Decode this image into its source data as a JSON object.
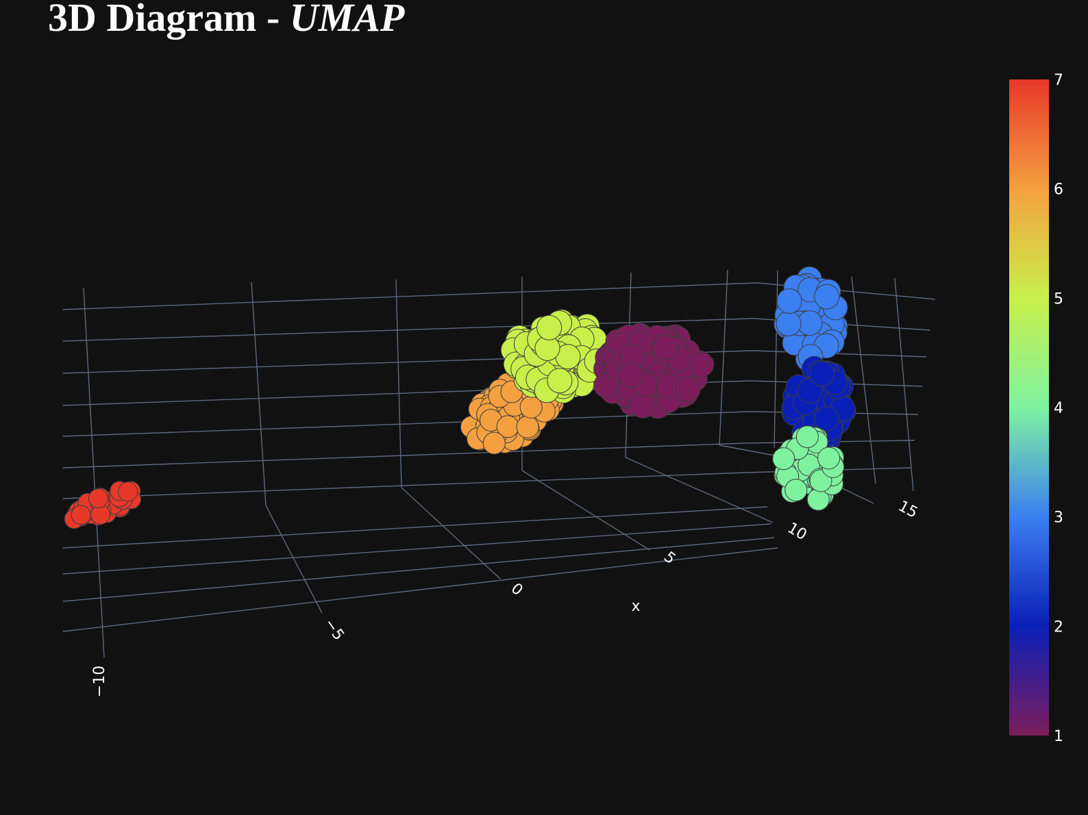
{
  "title": {
    "main": "3D Diagram - ",
    "emphasis": "UMAP"
  },
  "chart_data": {
    "type": "scatter",
    "dimensions": 3,
    "title": "3D Diagram - UMAP",
    "xlabel": "x",
    "x_ticks": [
      "−10",
      "−5",
      "0",
      "5",
      "10",
      "15"
    ],
    "colorbar": {
      "min": 1,
      "max": 7,
      "ticks": [
        "1",
        "2",
        "3",
        "4",
        "5",
        "6",
        "7"
      ],
      "colorscale": [
        "#7d1e5c",
        "#0a1fb8",
        "#3b7ff0",
        "#7ff2a0",
        "#c8f04a",
        "#f5a040",
        "#e8382a"
      ]
    },
    "clusters": [
      {
        "label": "1",
        "x_range": [
          6,
          9
        ],
        "color": "#7d1e5c"
      },
      {
        "label": "2",
        "x_range": [
          12,
          14
        ],
        "color": "#0a1fb8"
      },
      {
        "label": "3",
        "x_range": [
          12,
          14
        ],
        "color": "#3b7ff0"
      },
      {
        "label": "4",
        "x_range": [
          11,
          13
        ],
        "color": "#7ff2a0"
      },
      {
        "label": "5",
        "x_range": [
          3,
          7
        ],
        "color": "#c8f04a"
      },
      {
        "label": "6",
        "x_range": [
          1,
          4
        ],
        "color": "#f5a040"
      },
      {
        "label": "7",
        "x_range": [
          -11,
          -10
        ],
        "color": "#e8382a"
      }
    ]
  }
}
